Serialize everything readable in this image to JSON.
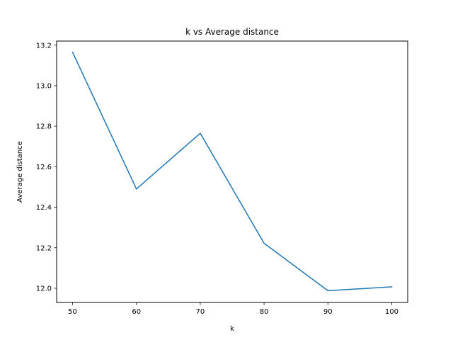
{
  "chart_data": {
    "type": "line",
    "title": "k vs Average distance",
    "xlabel": "k",
    "ylabel": "Average distance",
    "x": [
      50,
      60,
      70,
      80,
      90,
      100
    ],
    "series": [
      {
        "values": [
          13.165,
          12.49,
          12.765,
          12.222,
          11.988,
          12.007
        ],
        "color": "#1f77b4"
      }
    ],
    "xlim": [
      47.5,
      102.5
    ],
    "ylim": [
      11.93,
      13.22
    ],
    "xticks": [
      50,
      60,
      70,
      80,
      90,
      100
    ],
    "yticks": [
      12.0,
      12.2,
      12.4,
      12.6,
      12.8,
      13.0,
      13.2
    ],
    "ytick_labels": [
      "12.0",
      "12.2",
      "12.4",
      "12.6",
      "12.8",
      "13.0",
      "13.2"
    ],
    "grid": false
  }
}
